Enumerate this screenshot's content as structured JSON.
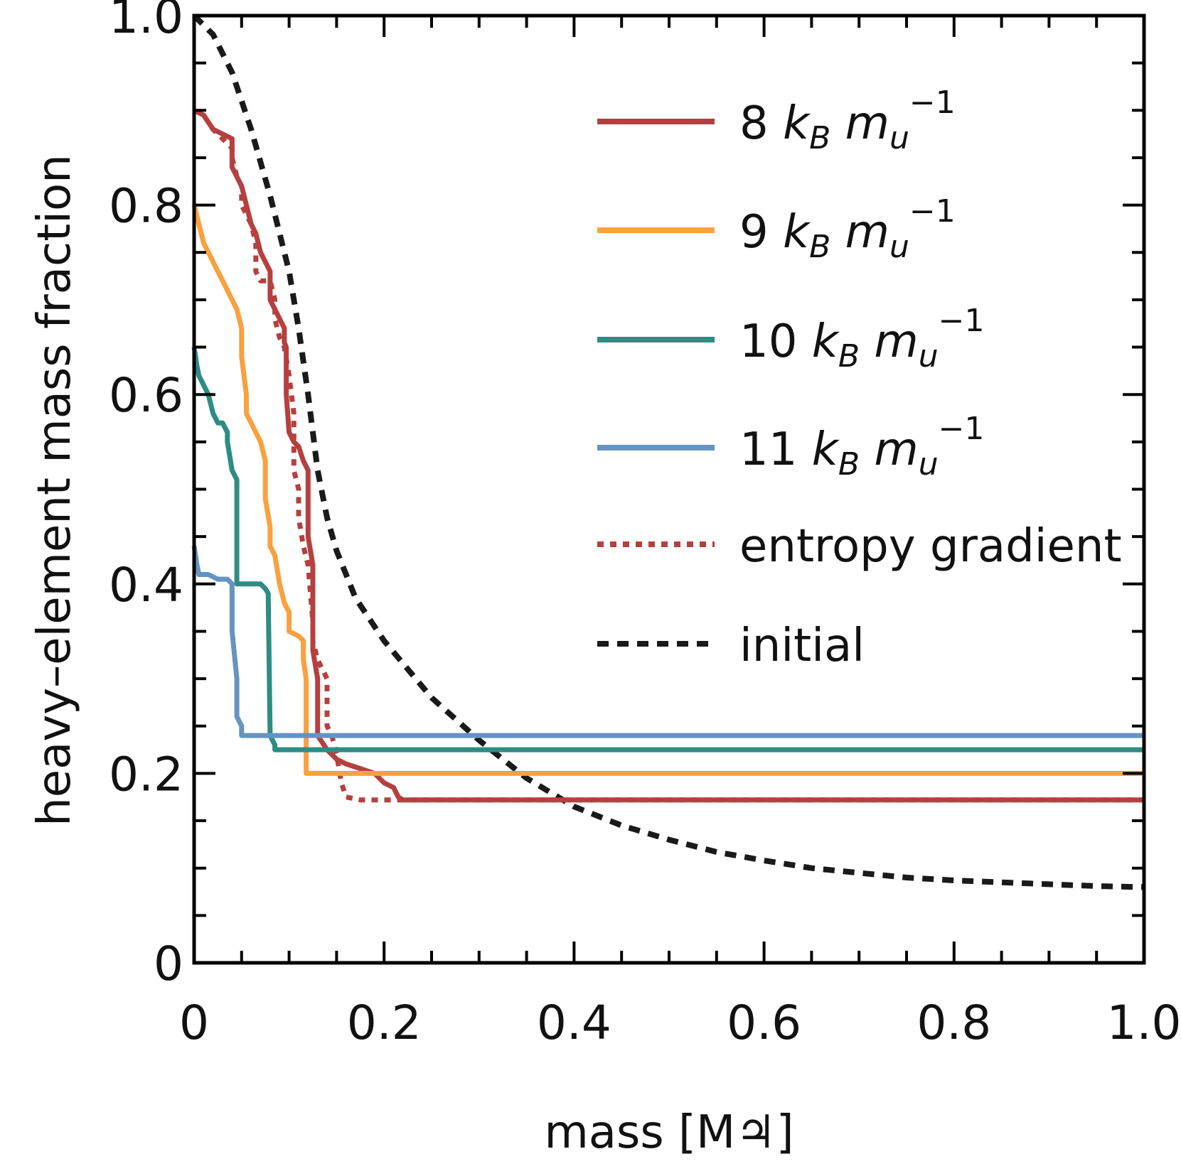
{
  "chart_data": {
    "type": "line",
    "xlabel": "mass [M♃]",
    "ylabel": "heavy–element mass fraction",
    "xlim": [
      0,
      1.0
    ],
    "ylim": [
      0,
      1.0
    ],
    "x_ticks": [
      {
        "value": 0,
        "label": "0"
      },
      {
        "value": 0.2,
        "label": "0.2"
      },
      {
        "value": 0.4,
        "label": "0.4"
      },
      {
        "value": 0.6,
        "label": "0.6"
      },
      {
        "value": 0.8,
        "label": "0.8"
      },
      {
        "value": 1.0,
        "label": "1.0"
      }
    ],
    "y_ticks": [
      {
        "value": 0,
        "label": "0"
      },
      {
        "value": 0.2,
        "label": "0.2"
      },
      {
        "value": 0.4,
        "label": "0.4"
      },
      {
        "value": 0.6,
        "label": "0.6"
      },
      {
        "value": 0.8,
        "label": "0.8"
      },
      {
        "value": 1.0,
        "label": "1.0"
      }
    ],
    "grid": false,
    "legend_position": "upper-right",
    "series": [
      {
        "name": "8 kB mu−1",
        "legend": {
          "number": "8",
          "sub": "B",
          "sub2": "u",
          "sup": "−1"
        },
        "color": "#b5403f",
        "style": "solid",
        "points": [
          [
            0,
            0.9
          ],
          [
            0.01,
            0.895
          ],
          [
            0.02,
            0.88
          ],
          [
            0.03,
            0.875
          ],
          [
            0.04,
            0.87
          ],
          [
            0.04,
            0.84
          ],
          [
            0.05,
            0.82
          ],
          [
            0.055,
            0.8
          ],
          [
            0.06,
            0.78
          ],
          [
            0.065,
            0.77
          ],
          [
            0.07,
            0.75
          ],
          [
            0.075,
            0.74
          ],
          [
            0.08,
            0.73
          ],
          [
            0.08,
            0.71
          ],
          [
            0.08,
            0.7
          ],
          [
            0.09,
            0.68
          ],
          [
            0.095,
            0.67
          ],
          [
            0.095,
            0.655
          ],
          [
            0.097,
            0.65
          ],
          [
            0.097,
            0.6
          ],
          [
            0.1,
            0.56
          ],
          [
            0.105,
            0.55
          ],
          [
            0.11,
            0.545
          ],
          [
            0.115,
            0.53
          ],
          [
            0.12,
            0.52
          ],
          [
            0.12,
            0.45
          ],
          [
            0.125,
            0.42
          ],
          [
            0.125,
            0.33
          ],
          [
            0.13,
            0.3
          ],
          [
            0.13,
            0.24
          ],
          [
            0.14,
            0.225
          ],
          [
            0.15,
            0.215
          ],
          [
            0.16,
            0.21
          ],
          [
            0.175,
            0.205
          ],
          [
            0.19,
            0.2
          ],
          [
            0.2,
            0.19
          ],
          [
            0.21,
            0.185
          ],
          [
            0.215,
            0.175
          ],
          [
            0.22,
            0.172
          ],
          [
            1.0,
            0.172
          ]
        ]
      },
      {
        "name": "9 kB mu−1",
        "legend": {
          "number": "9",
          "sub": "B",
          "sub2": "u",
          "sup": "−1"
        },
        "color": "#f9a13f",
        "style": "solid",
        "points": [
          [
            0,
            0.8
          ],
          [
            0.005,
            0.78
          ],
          [
            0.01,
            0.76
          ],
          [
            0.02,
            0.74
          ],
          [
            0.025,
            0.73
          ],
          [
            0.03,
            0.72
          ],
          [
            0.035,
            0.71
          ],
          [
            0.04,
            0.7
          ],
          [
            0.045,
            0.69
          ],
          [
            0.05,
            0.67
          ],
          [
            0.05,
            0.64
          ],
          [
            0.055,
            0.6
          ],
          [
            0.055,
            0.58
          ],
          [
            0.06,
            0.57
          ],
          [
            0.065,
            0.56
          ],
          [
            0.07,
            0.55
          ],
          [
            0.075,
            0.53
          ],
          [
            0.075,
            0.49
          ],
          [
            0.08,
            0.46
          ],
          [
            0.08,
            0.44
          ],
          [
            0.085,
            0.43
          ],
          [
            0.09,
            0.4
          ],
          [
            0.095,
            0.38
          ],
          [
            0.1,
            0.37
          ],
          [
            0.1,
            0.35
          ],
          [
            0.11,
            0.345
          ],
          [
            0.115,
            0.34
          ],
          [
            0.115,
            0.32
          ],
          [
            0.118,
            0.3
          ],
          [
            0.118,
            0.2
          ],
          [
            1.0,
            0.2
          ]
        ]
      },
      {
        "name": "10 kB mu−1",
        "legend": {
          "number": "10",
          "sub": "B",
          "sub2": "u",
          "sup": "−1"
        },
        "color": "#2e8c85",
        "style": "solid",
        "points": [
          [
            0,
            0.65
          ],
          [
            0.003,
            0.63
          ],
          [
            0.005,
            0.62
          ],
          [
            0.01,
            0.61
          ],
          [
            0.015,
            0.6
          ],
          [
            0.02,
            0.58
          ],
          [
            0.025,
            0.57
          ],
          [
            0.03,
            0.57
          ],
          [
            0.035,
            0.56
          ],
          [
            0.035,
            0.55
          ],
          [
            0.04,
            0.52
          ],
          [
            0.045,
            0.51
          ],
          [
            0.045,
            0.4
          ],
          [
            0.05,
            0.4
          ],
          [
            0.06,
            0.4
          ],
          [
            0.07,
            0.4
          ],
          [
            0.075,
            0.395
          ],
          [
            0.078,
            0.39
          ],
          [
            0.08,
            0.24
          ],
          [
            0.085,
            0.23
          ],
          [
            0.085,
            0.225
          ],
          [
            1.0,
            0.225
          ]
        ]
      },
      {
        "name": "11 kB mu−1",
        "legend": {
          "number": "11",
          "sub": "B",
          "sub2": "u",
          "sup": "−1"
        },
        "color": "#6594c0",
        "style": "solid",
        "points": [
          [
            0,
            0.44
          ],
          [
            0.003,
            0.42
          ],
          [
            0.005,
            0.41
          ],
          [
            0.015,
            0.41
          ],
          [
            0.025,
            0.405
          ],
          [
            0.035,
            0.405
          ],
          [
            0.04,
            0.4
          ],
          [
            0.04,
            0.35
          ],
          [
            0.045,
            0.3
          ],
          [
            0.045,
            0.26
          ],
          [
            0.05,
            0.25
          ],
          [
            0.05,
            0.24
          ],
          [
            1.0,
            0.24
          ]
        ]
      },
      {
        "name": "entropy gradient",
        "color": "#b5403f",
        "style": "dotted",
        "points": [
          [
            0,
            0.9
          ],
          [
            0.01,
            0.895
          ],
          [
            0.02,
            0.88
          ],
          [
            0.03,
            0.87
          ],
          [
            0.04,
            0.86
          ],
          [
            0.04,
            0.85
          ],
          [
            0.045,
            0.83
          ],
          [
            0.05,
            0.82
          ],
          [
            0.05,
            0.8
          ],
          [
            0.055,
            0.79
          ],
          [
            0.06,
            0.78
          ],
          [
            0.065,
            0.76
          ],
          [
            0.065,
            0.73
          ],
          [
            0.07,
            0.72
          ],
          [
            0.08,
            0.72
          ],
          [
            0.085,
            0.7
          ],
          [
            0.085,
            0.68
          ],
          [
            0.09,
            0.66
          ],
          [
            0.095,
            0.65
          ],
          [
            0.1,
            0.62
          ],
          [
            0.105,
            0.58
          ],
          [
            0.105,
            0.55
          ],
          [
            0.105,
            0.52
          ],
          [
            0.11,
            0.5
          ],
          [
            0.11,
            0.47
          ],
          [
            0.115,
            0.44
          ],
          [
            0.12,
            0.42
          ],
          [
            0.125,
            0.36
          ],
          [
            0.125,
            0.34
          ],
          [
            0.13,
            0.32
          ],
          [
            0.135,
            0.31
          ],
          [
            0.14,
            0.3
          ],
          [
            0.14,
            0.25
          ],
          [
            0.145,
            0.24
          ],
          [
            0.15,
            0.22
          ],
          [
            0.155,
            0.19
          ],
          [
            0.16,
            0.175
          ],
          [
            0.175,
            0.172
          ],
          [
            1.0,
            0.172
          ]
        ]
      },
      {
        "name": "initial",
        "color": "#1a1a1a",
        "style": "dashed",
        "points": [
          [
            0,
            1.0
          ],
          [
            0.02,
            0.98
          ],
          [
            0.04,
            0.94
          ],
          [
            0.06,
            0.88
          ],
          [
            0.08,
            0.81
          ],
          [
            0.1,
            0.73
          ],
          [
            0.11,
            0.67
          ],
          [
            0.12,
            0.6
          ],
          [
            0.13,
            0.52
          ],
          [
            0.14,
            0.47
          ],
          [
            0.15,
            0.435
          ],
          [
            0.17,
            0.385
          ],
          [
            0.2,
            0.34
          ],
          [
            0.25,
            0.28
          ],
          [
            0.3,
            0.235
          ],
          [
            0.35,
            0.195
          ],
          [
            0.4,
            0.165
          ],
          [
            0.45,
            0.145
          ],
          [
            0.5,
            0.13
          ],
          [
            0.55,
            0.117
          ],
          [
            0.6,
            0.108
          ],
          [
            0.65,
            0.1
          ],
          [
            0.7,
            0.095
          ],
          [
            0.75,
            0.09
          ],
          [
            0.8,
            0.087
          ],
          [
            0.85,
            0.085
          ],
          [
            0.9,
            0.083
          ],
          [
            0.95,
            0.081
          ],
          [
            1.0,
            0.08
          ]
        ]
      }
    ]
  }
}
